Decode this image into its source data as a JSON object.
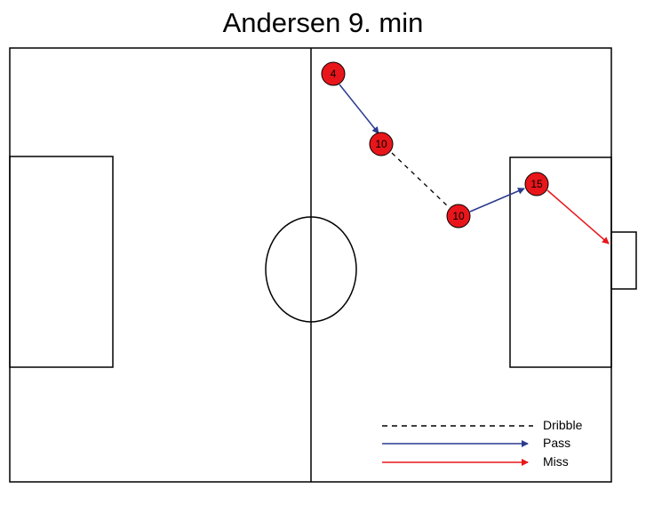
{
  "title": "Andersen 9. min",
  "colors": {
    "line": "#000000",
    "player_fill": "#e8161b",
    "pass": "#2b3a8f",
    "miss": "#e8161b",
    "dribble": "#000000"
  },
  "players": [
    {
      "number": "4"
    },
    {
      "number": "10"
    },
    {
      "number": "10"
    },
    {
      "number": "15"
    }
  ],
  "legend": {
    "dribble": "Dribble",
    "pass": "Pass",
    "miss": "Miss"
  }
}
